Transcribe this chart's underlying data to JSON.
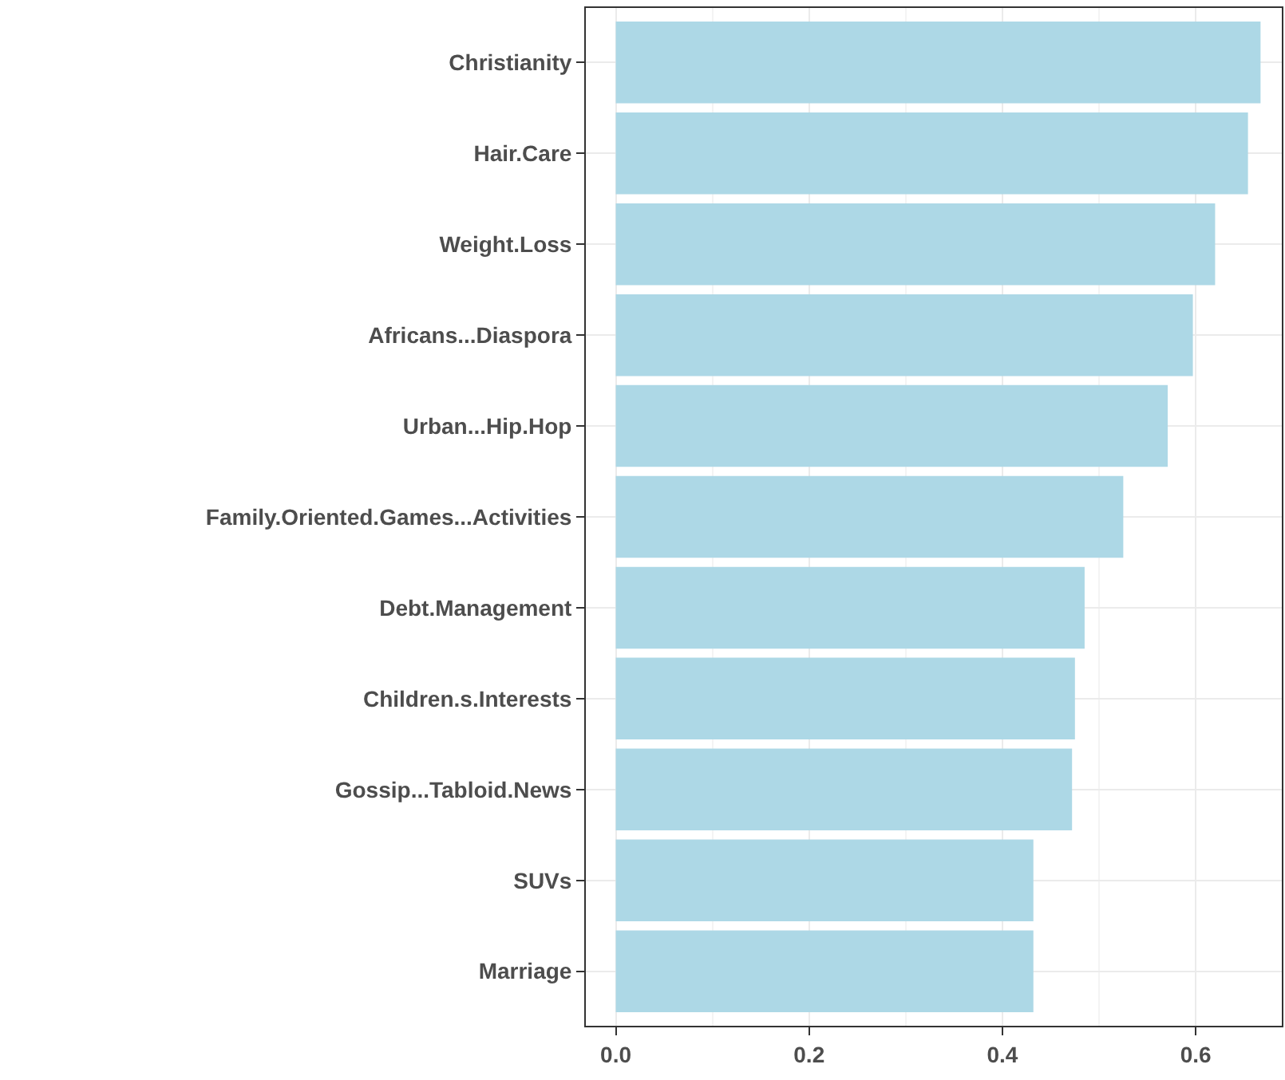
{
  "chart_data": {
    "type": "bar",
    "orientation": "horizontal",
    "categories": [
      "Christianity",
      "Hair.Care",
      "Weight.Loss",
      "Africans...Diaspora",
      "Urban...Hip.Hop",
      "Family.Oriented.Games...Activities",
      "Debt.Management",
      "Children.s.Interests",
      "Gossip...Tabloid.News",
      "SUVs",
      "Marriage"
    ],
    "values": [
      0.667,
      0.654,
      0.62,
      0.597,
      0.571,
      0.525,
      0.485,
      0.475,
      0.472,
      0.432,
      0.432
    ],
    "color": "#add8e6",
    "xlim": [
      -0.031,
      0.689
    ],
    "xticks": [
      {
        "value": 0,
        "label": "0.0"
      },
      0.2,
      0.4,
      0.6
    ],
    "grid": true
  }
}
